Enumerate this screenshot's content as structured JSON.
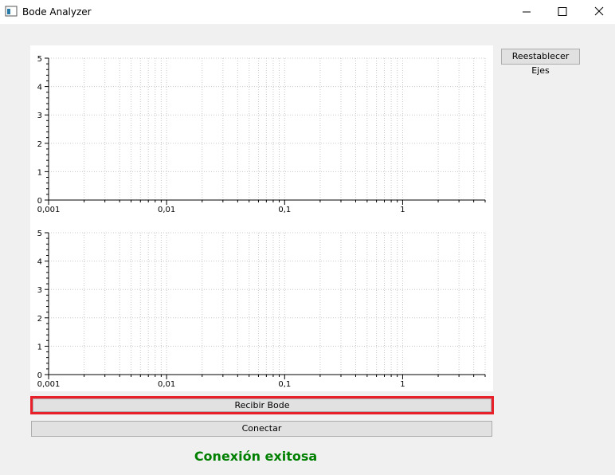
{
  "window": {
    "title": "Bode Analyzer"
  },
  "buttons": {
    "reset": "Reestablecer Ejes",
    "receive": "Recibir Bode",
    "connect": "Conectar"
  },
  "status": "Conexión exitosa",
  "plots": [
    {
      "xscale": "log",
      "grid": true,
      "xlim": [
        0.001,
        5
      ],
      "ylim": [
        0,
        5
      ],
      "xticks": [
        {
          "value": 0.001,
          "label": "0,001"
        },
        {
          "value": 0.01,
          "label": "0,01"
        },
        {
          "value": 0.1,
          "label": "0,1"
        },
        1
      ],
      "yticks": [
        0,
        1,
        2,
        3,
        4,
        5
      ]
    },
    {
      "xscale": "log",
      "grid": true,
      "xlim": [
        0.001,
        5
      ],
      "ylim": [
        0,
        5
      ],
      "xticks": [
        {
          "value": 0.001,
          "label": "0,001"
        },
        {
          "value": 0.01,
          "label": "0,01"
        },
        {
          "value": 0.1,
          "label": "0,1"
        },
        1
      ],
      "yticks": [
        0,
        1,
        2,
        3,
        4,
        5
      ]
    }
  ]
}
